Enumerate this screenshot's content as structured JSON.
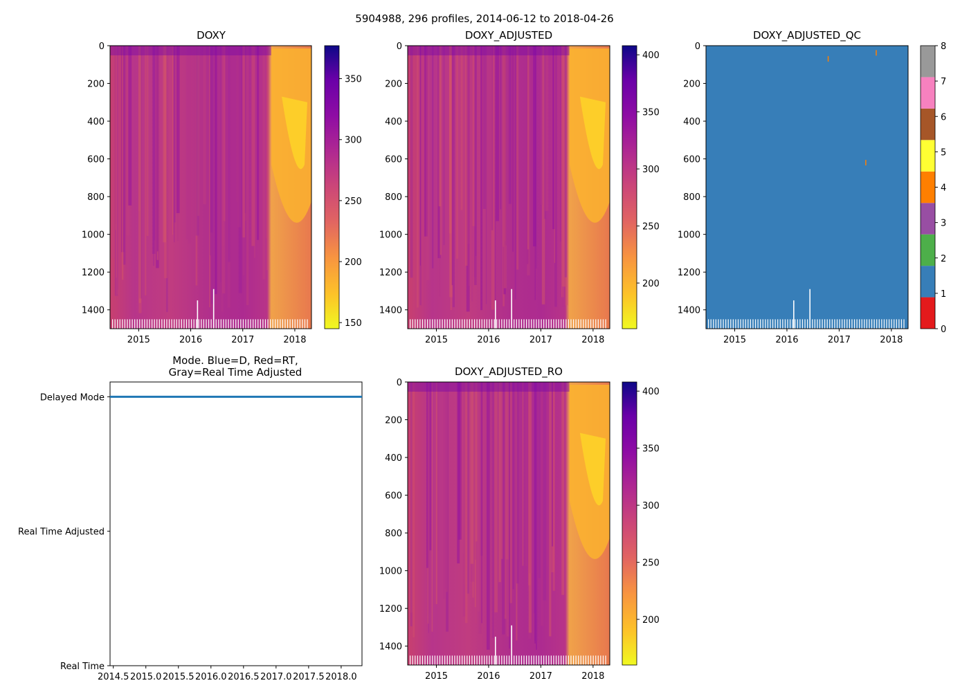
{
  "figure_title": "5904988, 296 profiles, 2014-06-12 to 2018-04-26",
  "chart_data": [
    {
      "id": "doxy",
      "type": "heatmap",
      "title": "DOXY",
      "x_ticks": [
        "2015",
        "2016",
        "2017",
        "2018"
      ],
      "x_tick_values": [
        2015,
        2016,
        2017,
        2018
      ],
      "xlim": [
        2014.45,
        2018.32
      ],
      "y_ticks": [
        "0",
        "200",
        "400",
        "600",
        "800",
        "1000",
        "1200",
        "1400"
      ],
      "y_tick_values": [
        0,
        200,
        400,
        600,
        800,
        1000,
        1200,
        1400
      ],
      "ylim": [
        1500,
        0
      ],
      "colormap": "plasma_r",
      "colorbar_range": [
        145,
        377
      ],
      "colorbar_ticks": [
        "150",
        "200",
        "250",
        "300",
        "350"
      ],
      "colorbar_tick_values": [
        150,
        200,
        250,
        300,
        350
      ]
    },
    {
      "id": "doxy-adjusted",
      "type": "heatmap",
      "title": "DOXY_ADJUSTED",
      "x_ticks": [
        "2015",
        "2016",
        "2017",
        "2018"
      ],
      "x_tick_values": [
        2015,
        2016,
        2017,
        2018
      ],
      "xlim": [
        2014.45,
        2018.32
      ],
      "y_ticks": [
        "0",
        "200",
        "400",
        "600",
        "800",
        "1000",
        "1200",
        "1400"
      ],
      "y_tick_values": [
        0,
        200,
        400,
        600,
        800,
        1000,
        1200,
        1400
      ],
      "ylim": [
        1500,
        0
      ],
      "colormap": "plasma_r",
      "colorbar_range": [
        160,
        408
      ],
      "colorbar_ticks": [
        "200",
        "250",
        "300",
        "350",
        "400"
      ],
      "colorbar_tick_values": [
        200,
        250,
        300,
        350,
        400
      ]
    },
    {
      "id": "doxy-adjusted-qc",
      "type": "heatmap",
      "title": "DOXY_ADJUSTED_QC",
      "x_ticks": [
        "2015",
        "2016",
        "2017",
        "2018"
      ],
      "x_tick_values": [
        2015,
        2016,
        2017,
        2018
      ],
      "xlim": [
        2014.45,
        2018.32
      ],
      "y_ticks": [
        "0",
        "200",
        "400",
        "600",
        "800",
        "1000",
        "1200",
        "1400"
      ],
      "y_tick_values": [
        0,
        200,
        400,
        600,
        800,
        1000,
        1200,
        1400
      ],
      "ylim": [
        1500,
        0
      ],
      "dominant_flag": 1,
      "colorbar_ticks": [
        "0",
        "1",
        "2",
        "3",
        "4",
        "5",
        "6",
        "7",
        "8"
      ],
      "colorbar_tick_values": [
        0,
        1,
        2,
        3,
        4,
        5,
        6,
        7,
        8
      ],
      "qc_colors": [
        "#e41a1c",
        "#377eb8",
        "#4daf4a",
        "#984ea3",
        "#ff7f00",
        "#ffff33",
        "#a65628",
        "#f781bf",
        "#999999"
      ]
    },
    {
      "id": "mode",
      "type": "scatter",
      "title_lines": [
        "Mode. Blue=D, Red=RT,",
        "Gray=Real Time Adjusted"
      ],
      "x_ticks": [
        "2014.5",
        "2015.0",
        "2015.5",
        "2016.0",
        "2016.5",
        "2017.0",
        "2017.5",
        "2018.0"
      ],
      "x_tick_values": [
        2014.5,
        2015.0,
        2015.5,
        2016.0,
        2016.5,
        2017.0,
        2017.5,
        2018.0
      ],
      "xlim": [
        2014.45,
        2018.32
      ],
      "y_categories": [
        "Real Time",
        "Real Time Adjusted",
        "Delayed Mode"
      ],
      "y_values": [
        0,
        1,
        2
      ],
      "series": [
        {
          "name": "Delayed Mode",
          "x_range": [
            2014.45,
            2018.32
          ],
          "y": 2,
          "profile_count": 296,
          "color": "#1f77b4"
        }
      ]
    },
    {
      "id": "doxy-adjusted-ro",
      "type": "heatmap",
      "title": "DOXY_ADJUSTED_RO",
      "x_ticks": [
        "2015",
        "2016",
        "2017",
        "2018"
      ],
      "x_tick_values": [
        2015,
        2016,
        2017,
        2018
      ],
      "xlim": [
        2014.45,
        2018.32
      ],
      "y_ticks": [
        "0",
        "200",
        "400",
        "600",
        "800",
        "1000",
        "1200",
        "1400"
      ],
      "y_tick_values": [
        0,
        200,
        400,
        600,
        800,
        1000,
        1200,
        1400
      ],
      "ylim": [
        1500,
        0
      ],
      "colormap": "plasma_r",
      "colorbar_range": [
        160,
        408
      ],
      "colorbar_ticks": [
        "200",
        "250",
        "300",
        "350",
        "400"
      ],
      "colorbar_tick_values": [
        200,
        250,
        300,
        350,
        400
      ]
    }
  ]
}
